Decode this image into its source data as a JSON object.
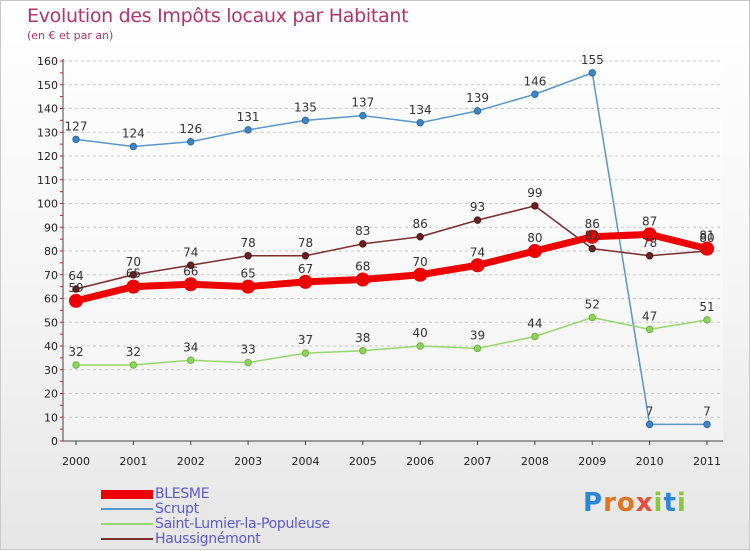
{
  "header": {
    "title": "Evolution des Impôts locaux par Habitant",
    "subtitle": "(en € et par an)"
  },
  "logo": {
    "letters": [
      "P",
      "r",
      "o",
      "x",
      "i",
      "t",
      "i"
    ],
    "colors": [
      "#2b88d8",
      "#e6731e",
      "#e6731e",
      "#e94b3c",
      "#8cc63f",
      "#2b88d8",
      "#8cc63f"
    ]
  },
  "chart_data": {
    "type": "line",
    "title": "Evolution des Impôts locaux par Habitant",
    "subtitle": "(en € et par an)",
    "categories": [
      "2000",
      "2001",
      "2002",
      "2003",
      "2004",
      "2005",
      "2006",
      "2007",
      "2008",
      "2009",
      "2010",
      "2011"
    ],
    "ylim": [
      0,
      160
    ],
    "yticks": [
      0,
      10,
      20,
      30,
      40,
      50,
      60,
      70,
      80,
      90,
      100,
      110,
      120,
      130,
      140,
      150,
      160
    ],
    "grid": "horizontal",
    "legend_position": "bottom-left",
    "series": [
      {
        "name": "BLESME",
        "color": "#ee0000",
        "values": [
          59,
          65,
          66,
          65,
          67,
          68,
          70,
          74,
          80,
          86,
          87,
          81
        ]
      },
      {
        "name": "Scrupt",
        "color": "#5b96c9",
        "values": [
          127,
          124,
          126,
          131,
          135,
          137,
          134,
          139,
          146,
          155,
          7,
          7
        ]
      },
      {
        "name": "Saint-Lumier-la-Populeuse",
        "color": "#99d66e",
        "values": [
          32,
          32,
          34,
          33,
          37,
          38,
          40,
          39,
          44,
          52,
          47,
          51
        ]
      },
      {
        "name": "Haussignémont",
        "color": "#7a2e2e",
        "values": [
          64,
          70,
          74,
          78,
          78,
          83,
          86,
          93,
          99,
          81,
          78,
          80
        ]
      }
    ]
  }
}
